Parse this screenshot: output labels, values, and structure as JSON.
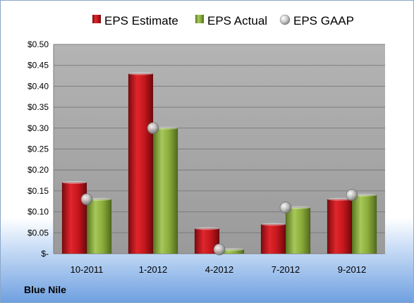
{
  "company": "Blue Nile",
  "colors": {
    "estimate": "#c0161c",
    "actual": "#8aab3a",
    "gaap": "#b9b9b9",
    "plot_bg": "#a6a6a6"
  },
  "chart_data": {
    "type": "bar",
    "categories": [
      "10-2011",
      "1-2012",
      "4-2012",
      "7-2012",
      "9-2012"
    ],
    "series": [
      {
        "name": "EPS Estimate",
        "values": [
          0.17,
          0.43,
          0.06,
          0.07,
          0.13
        ]
      },
      {
        "name": "EPS Actual",
        "values": [
          0.13,
          0.3,
          0.01,
          0.11,
          0.14
        ]
      },
      {
        "name": "EPS GAAP",
        "values": [
          0.13,
          0.3,
          0.01,
          0.11,
          0.14
        ]
      }
    ],
    "ylim": [
      0,
      0.5
    ],
    "yticks": [
      0,
      0.05,
      0.1,
      0.15,
      0.2,
      0.25,
      0.3,
      0.35,
      0.4,
      0.45,
      0.5
    ],
    "ytick_labels": [
      "$-",
      "$0.05",
      "$0.10",
      "$0.15",
      "$0.20",
      "$0.25",
      "$0.30",
      "$0.35",
      "$0.40",
      "$0.45",
      "$0.50"
    ],
    "legend_position": "top",
    "grid": true
  }
}
